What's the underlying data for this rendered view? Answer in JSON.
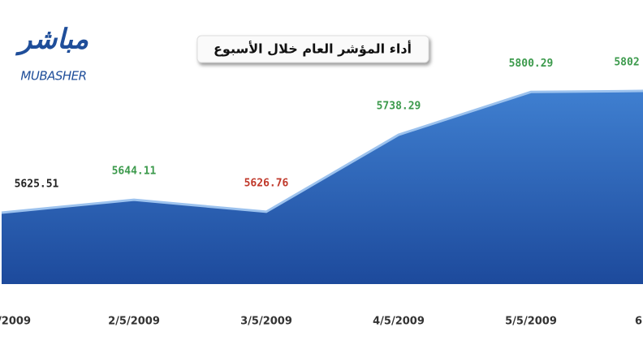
{
  "chart_data": {
    "type": "area",
    "title": "أداء المؤشر العام خلال الأسبوع",
    "logo": {
      "arabic": "مباشر",
      "latin": "MUBASHER"
    },
    "categories": [
      "/2009",
      "2/5/2009",
      "3/5/2009",
      "4/5/2009",
      "5/5/2009",
      "6"
    ],
    "values": [
      5625.51,
      5644.11,
      5626.76,
      5738.29,
      5800.29,
      5802
    ],
    "label_colors": [
      "#222222",
      "#3c9a4c",
      "#c0392b",
      "#3c9a4c",
      "#3c9a4c",
      "#3c9a4c"
    ],
    "color": "#2358ad",
    "ylim": [
      5522,
      5870
    ]
  }
}
